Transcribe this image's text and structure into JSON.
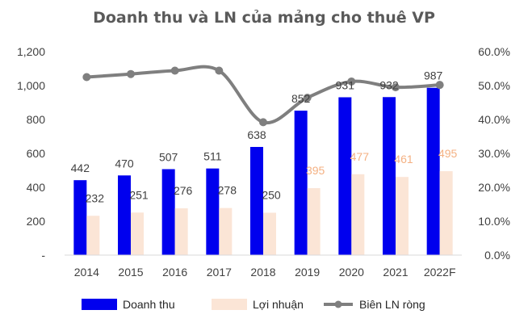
{
  "chart_data": {
    "type": "bar",
    "title": "Doanh thu và LN của mảng cho thuê VP",
    "categories": [
      "2014",
      "2015",
      "2016",
      "2017",
      "2018",
      "2019",
      "2020",
      "2021",
      "2022F"
    ],
    "series": [
      {
        "name": "Doanh thu",
        "type": "bar",
        "axis": "left",
        "color": "#0000ee",
        "values": [
          442,
          470,
          507,
          511,
          638,
          852,
          931,
          932,
          987
        ],
        "labels": [
          "442",
          "470",
          "507",
          "511",
          "638",
          "852",
          "931",
          "932",
          "987"
        ],
        "label_color": "#404040"
      },
      {
        "name": "Lợi nhuận",
        "type": "bar",
        "axis": "left",
        "color": "#fbe5d6",
        "values": [
          232,
          251,
          276,
          278,
          250,
          395,
          477,
          461,
          495
        ],
        "labels": [
          "232",
          "251",
          "276",
          "278",
          "250",
          "395",
          "477",
          "461",
          "495"
        ],
        "label_color_early": "#404040",
        "label_color_late": "#f4b183"
      },
      {
        "name": "Biên LN ròng",
        "type": "line",
        "axis": "right",
        "color": "#7f7f7f",
        "values": [
          52.5,
          53.4,
          54.4,
          54.4,
          39.2,
          46.4,
          51.2,
          49.5,
          50.2
        ]
      }
    ],
    "left_axis": {
      "ylim": [
        0,
        1200
      ],
      "ticks": [
        0,
        200,
        400,
        600,
        800,
        1000,
        1200
      ],
      "tick_labels": [
        "-",
        "200",
        "400",
        "600",
        "800",
        "1,000",
        "1,200"
      ]
    },
    "right_axis": {
      "ylim": [
        0,
        60
      ],
      "ticks": [
        0,
        10,
        20,
        30,
        40,
        50,
        60
      ],
      "tick_labels": [
        "0.0%",
        "10.0%",
        "20.0%",
        "30.0%",
        "40.0%",
        "50.0%",
        "60.0%"
      ]
    },
    "grid": false,
    "legend": {
      "position": "bottom",
      "entries": [
        "Doanh thu",
        "Lợi nhuận",
        "Biên LN ròng"
      ]
    }
  }
}
